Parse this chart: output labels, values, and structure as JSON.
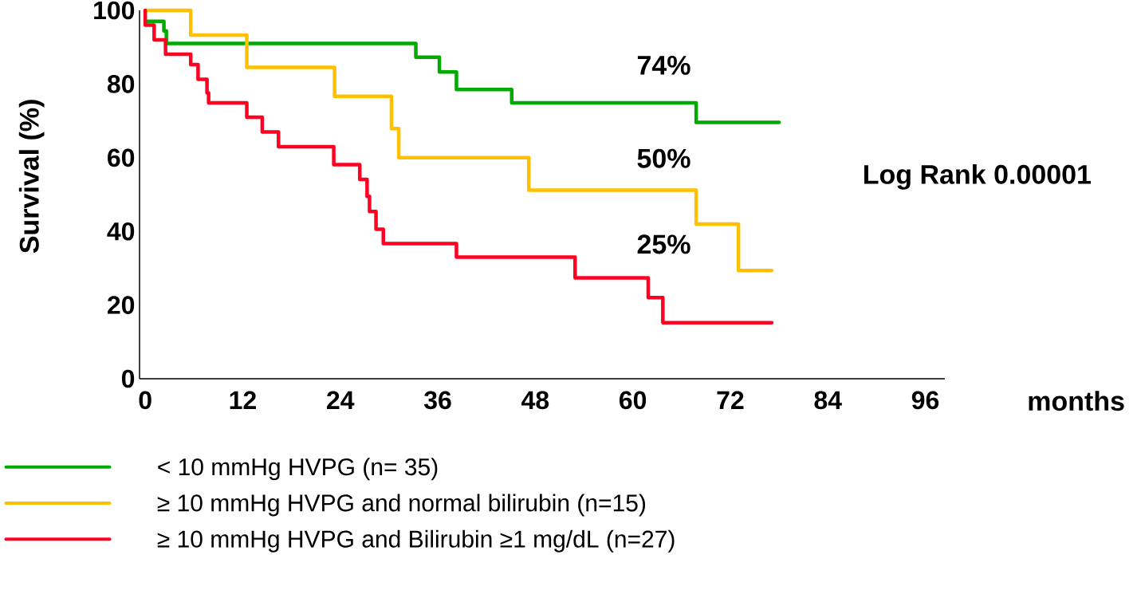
{
  "chart_data": {
    "type": "step",
    "xlabel": "months",
    "ylabel": "Survival (%)",
    "xlim": [
      -0.7,
      98.4
    ],
    "ylim": [
      0,
      100
    ],
    "xticks": [
      0,
      12,
      24,
      36,
      48,
      60,
      72,
      84,
      96
    ],
    "yticks": [
      0,
      20,
      40,
      60,
      80,
      100
    ],
    "legend": "bottom",
    "annotations": [
      "74%",
      "50%",
      "25%",
      "Log Rank 0.00001"
    ],
    "series": [
      {
        "name": "< 10 mmHg HVPG  (n= 35)",
        "color": "#00aa00",
        "x": [
          0,
          2.3,
          2.6,
          33.3,
          36.2,
          38.3,
          45.1,
          67.8,
          78.0
        ],
        "values": [
          97.0,
          94.4,
          91.0,
          87.3,
          83.3,
          78.5,
          74.9,
          69.6,
          69.6
        ]
      },
      {
        "name": "≥ 10 mmHg HVPG and normal bilirubin (n=15)",
        "color": "#ffc000",
        "x": [
          0,
          5.6,
          12.5,
          23.3,
          30.3,
          31.2,
          47.2,
          67.8,
          73.0,
          77.1
        ],
        "values": [
          100,
          93.3,
          84.5,
          76.7,
          67.9,
          60.0,
          51.2,
          42.0,
          29.4,
          29.4
        ]
      },
      {
        "name": "≥ 10 mmHg HVPG and Bilirubin ≥1 mg/dL (n=27)",
        "color": "#ff0022",
        "x": [
          0,
          0,
          1.1,
          2.5,
          5.6,
          6.5,
          7.6,
          7.8,
          12.5,
          14.4,
          16.4,
          23.2,
          26.4,
          27.3,
          27.6,
          28.4,
          29.3,
          38.3,
          52.9,
          61.9,
          63.7,
          77.1
        ],
        "values": [
          100,
          96.0,
          92.0,
          88.1,
          85.3,
          81.3,
          77.6,
          74.9,
          71.0,
          67.0,
          63.0,
          58.1,
          54.1,
          49.5,
          45.4,
          40.6,
          36.7,
          33.0,
          27.4,
          22.0,
          15.2,
          15.2
        ]
      }
    ]
  }
}
